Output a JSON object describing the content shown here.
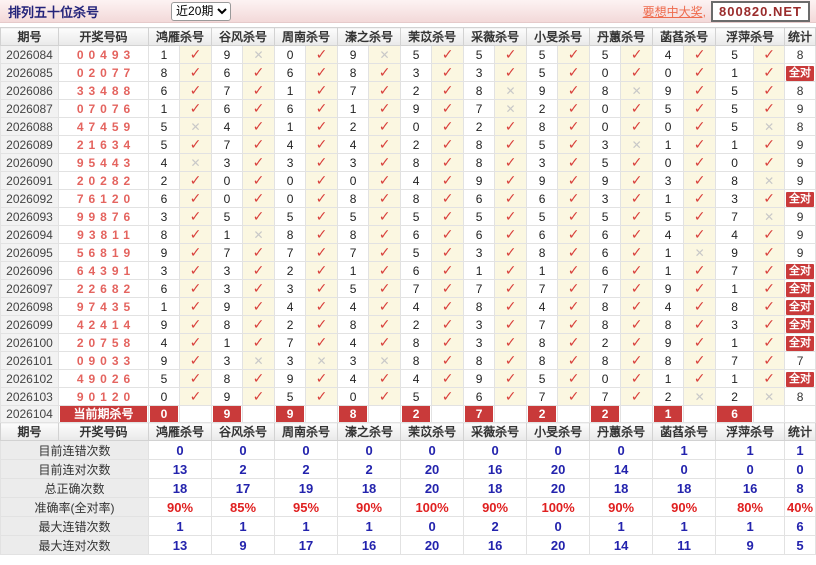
{
  "colors": {
    "accent_red": "#c93a3a",
    "check_red": "#d9413c",
    "cross_gray": "#c8c8c8",
    "value_blue": "#2323ad",
    "value_red": "#e02020",
    "winning_numbers_pink": "#e4645f",
    "topbar_pink": "#f3d9d9"
  },
  "topbar": {
    "title": "排列五十位杀号",
    "range_value": "近20期",
    "promo_link": "要想中大奖,",
    "domain": "800820.NET"
  },
  "table": {
    "col_period": "期号",
    "col_numbers": "开奖号码",
    "col_stat": "统计",
    "all_correct_label": "全对",
    "icons": {
      "check": "✓",
      "cross": "✕"
    },
    "experts": [
      "鸿雁杀号",
      "谷风杀号",
      "周南杀号",
      "溱之杀号",
      "茉苡杀号",
      "采薇杀号",
      "小旻杀号",
      "丹蕙杀号",
      "菡萏杀号",
      "浮萍杀号"
    ],
    "rows": [
      {
        "period": "2026084",
        "numbers": "00493",
        "kills": [
          1,
          9,
          0,
          9,
          5,
          5,
          5,
          5,
          4,
          5
        ],
        "wrong": [
          1,
          3
        ],
        "stat": "8"
      },
      {
        "period": "2026085",
        "numbers": "02077",
        "kills": [
          8,
          6,
          6,
          8,
          3,
          3,
          5,
          0,
          0,
          1
        ],
        "wrong": [],
        "stat": "全对"
      },
      {
        "period": "2026086",
        "numbers": "33488",
        "kills": [
          6,
          7,
          1,
          7,
          2,
          8,
          9,
          8,
          9,
          5
        ],
        "wrong": [
          5,
          7
        ],
        "stat": "8"
      },
      {
        "period": "2026087",
        "numbers": "07076",
        "kills": [
          1,
          6,
          6,
          1,
          9,
          7,
          2,
          0,
          5,
          5
        ],
        "wrong": [
          5
        ],
        "stat": "9"
      },
      {
        "period": "2026088",
        "numbers": "47459",
        "kills": [
          5,
          4,
          1,
          2,
          0,
          2,
          8,
          0,
          0,
          5
        ],
        "wrong": [
          0,
          9
        ],
        "stat": "8"
      },
      {
        "period": "2026089",
        "numbers": "21634",
        "kills": [
          5,
          7,
          4,
          4,
          2,
          8,
          5,
          3,
          1,
          1
        ],
        "wrong": [
          7
        ],
        "stat": "9"
      },
      {
        "period": "2026090",
        "numbers": "95443",
        "kills": [
          4,
          3,
          3,
          3,
          8,
          8,
          3,
          5,
          0,
          0
        ],
        "wrong": [
          0
        ],
        "stat": "9"
      },
      {
        "period": "2026091",
        "numbers": "20282",
        "kills": [
          2,
          0,
          0,
          0,
          4,
          9,
          9,
          9,
          3,
          8
        ],
        "wrong": [
          9
        ],
        "stat": "9"
      },
      {
        "period": "2026092",
        "numbers": "76120",
        "kills": [
          6,
          0,
          0,
          8,
          8,
          6,
          6,
          3,
          1,
          3
        ],
        "wrong": [],
        "stat": "全对"
      },
      {
        "period": "2026093",
        "numbers": "99876",
        "kills": [
          3,
          5,
          5,
          5,
          5,
          5,
          5,
          5,
          5,
          7
        ],
        "wrong": [
          9
        ],
        "stat": "9"
      },
      {
        "period": "2026094",
        "numbers": "93811",
        "kills": [
          8,
          1,
          8,
          8,
          6,
          6,
          6,
          6,
          4,
          4
        ],
        "wrong": [
          1
        ],
        "stat": "9"
      },
      {
        "period": "2026095",
        "numbers": "56819",
        "kills": [
          9,
          7,
          7,
          7,
          5,
          3,
          8,
          6,
          1,
          9
        ],
        "wrong": [
          8
        ],
        "stat": "9"
      },
      {
        "period": "2026096",
        "numbers": "64391",
        "kills": [
          3,
          3,
          2,
          1,
          6,
          1,
          1,
          6,
          1,
          7
        ],
        "wrong": [],
        "stat": "全对"
      },
      {
        "period": "2026097",
        "numbers": "22682",
        "kills": [
          6,
          3,
          3,
          5,
          7,
          7,
          7,
          7,
          9,
          1
        ],
        "wrong": [],
        "stat": "全对"
      },
      {
        "period": "2026098",
        "numbers": "97435",
        "kills": [
          1,
          9,
          4,
          4,
          4,
          8,
          4,
          8,
          4,
          8
        ],
        "wrong": [],
        "stat": "全对"
      },
      {
        "period": "2026099",
        "numbers": "42414",
        "kills": [
          9,
          8,
          2,
          8,
          2,
          3,
          7,
          8,
          8,
          3
        ],
        "wrong": [],
        "stat": "全对"
      },
      {
        "period": "2026100",
        "numbers": "20758",
        "kills": [
          4,
          1,
          7,
          4,
          8,
          3,
          8,
          2,
          9,
          1
        ],
        "wrong": [],
        "stat": "全对"
      },
      {
        "period": "2026101",
        "numbers": "09033",
        "kills": [
          9,
          3,
          3,
          3,
          8,
          8,
          8,
          8,
          8,
          7
        ],
        "wrong": [
          1,
          2,
          3
        ],
        "stat": "7"
      },
      {
        "period": "2026102",
        "numbers": "49026",
        "kills": [
          5,
          8,
          9,
          4,
          4,
          9,
          5,
          0,
          1,
          1
        ],
        "wrong": [],
        "stat": "全对"
      },
      {
        "period": "2026103",
        "numbers": "90120",
        "kills": [
          0,
          9,
          5,
          0,
          5,
          6,
          7,
          7,
          2,
          2
        ],
        "wrong": [
          8,
          9
        ],
        "stat": "8"
      }
    ],
    "current": {
      "period": "2026104",
      "label": "当前期杀号",
      "kills": [
        0,
        9,
        9,
        8,
        2,
        7,
        2,
        2,
        1,
        6
      ]
    },
    "summary": [
      {
        "label": "目前连错次数",
        "values": [
          "0",
          "0",
          "0",
          "0",
          "0",
          "0",
          "0",
          "0",
          "1",
          "1"
        ],
        "stat": "1",
        "style": "blue"
      },
      {
        "label": "目前连对次数",
        "values": [
          "13",
          "2",
          "2",
          "2",
          "20",
          "16",
          "20",
          "14",
          "0",
          "0"
        ],
        "stat": "0",
        "style": "blue"
      },
      {
        "label": "总正确次数",
        "values": [
          "18",
          "17",
          "19",
          "18",
          "20",
          "18",
          "20",
          "18",
          "18",
          "16"
        ],
        "stat": "8",
        "style": "blue"
      },
      {
        "label": "准确率(全对率)",
        "values": [
          "90%",
          "85%",
          "95%",
          "90%",
          "100%",
          "90%",
          "100%",
          "90%",
          "90%",
          "80%"
        ],
        "stat": "40%",
        "style": "red"
      },
      {
        "label": "最大连错次数",
        "values": [
          "1",
          "1",
          "1",
          "1",
          "0",
          "2",
          "0",
          "1",
          "1",
          "1"
        ],
        "stat": "6",
        "style": "blue"
      },
      {
        "label": "最大连对次数",
        "values": [
          "13",
          "9",
          "17",
          "16",
          "20",
          "16",
          "20",
          "14",
          "11",
          "9"
        ],
        "stat": "5",
        "style": "blue"
      }
    ]
  }
}
